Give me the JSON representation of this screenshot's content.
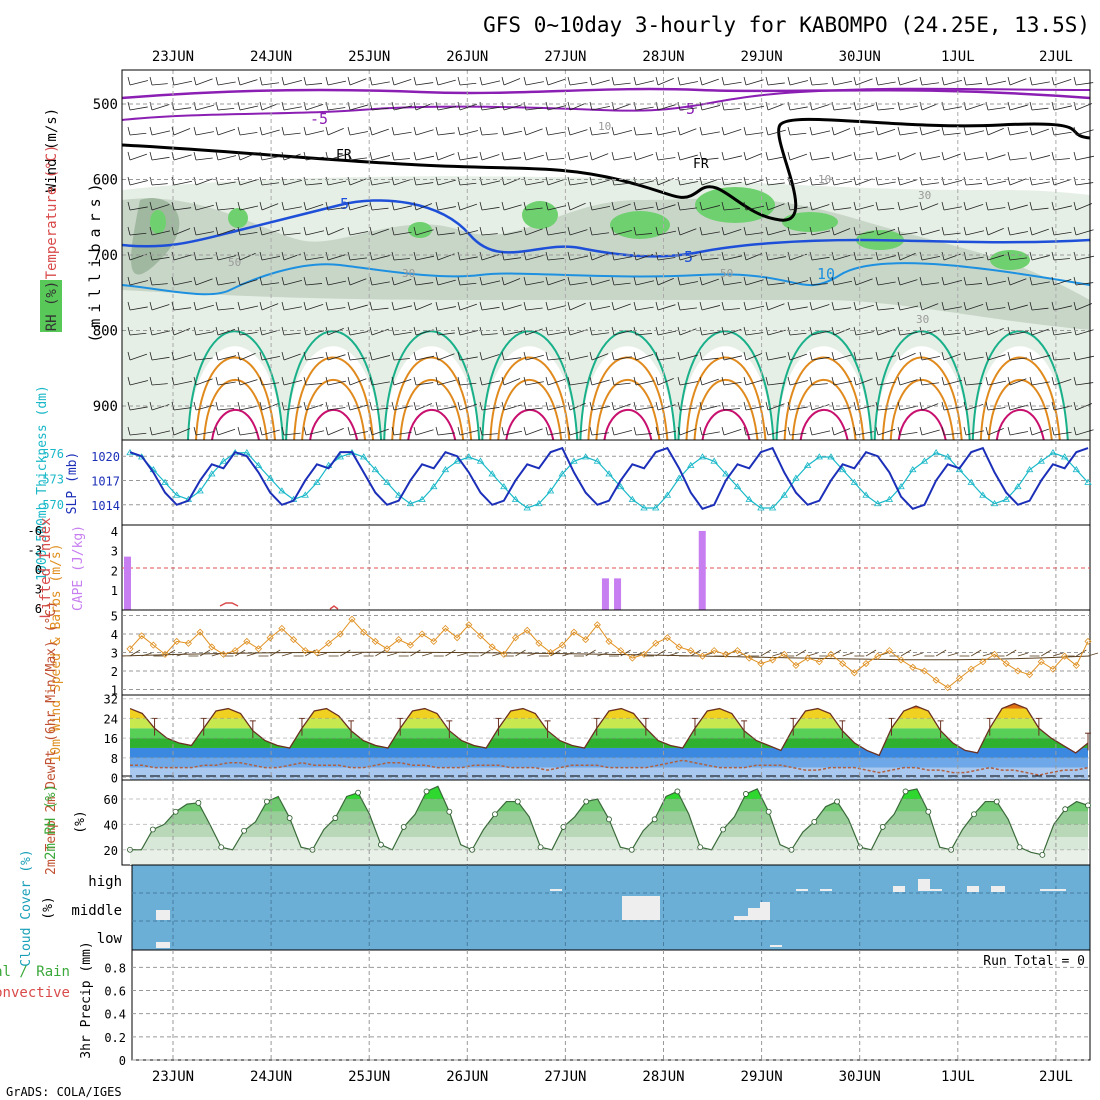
{
  "title": "GFS 0~10day 3-hourly for KABOMPO (24.25E, 13.5S)",
  "footer": "GrADS: COLA/IGES",
  "date_labels": [
    "23JUN",
    "24JUN",
    "25JUN",
    "26JUN",
    "27JUN",
    "28JUN",
    "29JUN",
    "30JUN",
    "1JUL",
    "2JUL"
  ],
  "colors": {
    "purple": "#8b1fb3",
    "blue": "#1e4fd8",
    "lightblue": "#1e90e0",
    "teal": "#19b08a",
    "orange": "#e08a1e",
    "magenta": "#c8106e",
    "slp": "#1c2fb8",
    "thick": "#19b8c8",
    "cape": "#c77ef0",
    "wind": "#e09020",
    "cloud": "#6baed6"
  },
  "chart_data": [
    {
      "type": "heatmap",
      "panel": "cross_section",
      "ylabel_parts": [
        "RH (%)",
        "Temperature (°C)",
        "Wind (m/s)"
      ],
      "yaxis_label": "(millibars)",
      "y_ticks": [
        500,
        600,
        700,
        800,
        900
      ],
      "contour_labels": [
        "-5",
        "-5",
        "5",
        "5",
        "10",
        "FR",
        "FR",
        "10",
        "10",
        "30",
        "30",
        "30",
        "50",
        "50"
      ]
    },
    {
      "type": "line",
      "panel": "slp_thickness",
      "ylabel_left": "1000-500mb Thickness (dm)",
      "ylabel_right": "SLP (mb)",
      "left_ticks": [
        576,
        573,
        570
      ],
      "right_ticks": [
        1020,
        1017,
        1014
      ],
      "series": [
        {
          "name": "SLP (mb)",
          "values": [
            1020.5,
            1020,
            1018,
            1015.5,
            1014,
            1014.5,
            1017,
            1019,
            1018.5,
            1020.5,
            1020,
            1018,
            1015.5,
            1014,
            1014.5,
            1017,
            1019,
            1018.5,
            1020.5,
            1020.5,
            1018,
            1015.5,
            1014,
            1014.5,
            1017,
            1019,
            1018.5,
            1020.5,
            1020,
            1018,
            1015.5,
            1014,
            1014.5,
            1017,
            1019,
            1018.5,
            1020.5,
            1021,
            1018,
            1015.5,
            1014,
            1014.5,
            1017,
            1019,
            1018.5,
            1020.5,
            1021,
            1018.5,
            1015.5,
            1013.5,
            1014,
            1017,
            1019,
            1018.5,
            1020.5,
            1021,
            1018,
            1015.5,
            1014,
            1014.5,
            1017,
            1019,
            1018.5,
            1020.5,
            1020,
            1018,
            1015,
            1013.5,
            1014,
            1017,
            1019,
            1018.5,
            1020.5,
            1021,
            1018,
            1015.5,
            1014,
            1014.5,
            1017,
            1019,
            1018.5,
            1020.5,
            1021
          ]
        },
        {
          "name": "Thickness (dm)",
          "values": [
            576,
            575.5,
            574,
            572.5,
            571,
            570.5,
            571.5,
            573.5,
            575,
            576,
            576,
            574.5,
            573,
            571.5,
            570.5,
            571,
            572.5,
            574.5,
            575.5,
            576,
            575.5,
            574,
            572.5,
            571,
            570,
            570.5,
            572,
            574,
            575,
            575.5,
            575,
            573.5,
            572,
            570.5,
            569.5,
            570,
            571.5,
            573.5,
            575,
            575.5,
            575,
            573.5,
            572,
            570.5,
            569.5,
            569.5,
            571,
            573,
            574.5,
            575.5,
            575,
            573.5,
            572,
            570.5,
            569.5,
            569.5,
            571,
            573,
            574.5,
            575.5,
            575.5,
            574,
            572.5,
            571,
            570,
            570.5,
            572,
            574,
            575,
            576,
            575.5,
            574,
            572.5,
            571,
            570,
            570.5,
            572,
            574,
            575,
            576,
            575.5,
            574,
            572.5
          ]
        }
      ]
    },
    {
      "type": "bar",
      "panel": "cape_li",
      "ylabel_left": "Lifted Index",
      "ylabel_right": "CAPE (J/kg)",
      "li_ticks": [
        "-6",
        "-3",
        "0",
        "3",
        "6"
      ],
      "cape_ticks": [
        4,
        3,
        2,
        1
      ],
      "cape_bars": [
        {
          "x": 0,
          "value": 2.7
        },
        {
          "x": 39.5,
          "value": 1.6
        },
        {
          "x": 40.5,
          "value": 1.6
        },
        {
          "x": 47.5,
          "value": 4
        }
      ]
    },
    {
      "type": "line",
      "panel": "wind10m",
      "ylabel": "10m Wind Speed & Barbs (m/s)",
      "y_ticks": [
        5,
        4,
        3,
        2,
        1
      ],
      "values": [
        3.2,
        3.9,
        3.4,
        2.9,
        3.6,
        3.5,
        4.1,
        3.3,
        2.9,
        3.1,
        3.6,
        3.2,
        3.8,
        4.3,
        3.7,
        3.1,
        3.0,
        3.5,
        4.0,
        4.8,
        4.1,
        3.6,
        3.2,
        3.7,
        3.4,
        4.0,
        3.6,
        4.3,
        3.8,
        4.5,
        3.9,
        3.3,
        2.9,
        3.8,
        4.2,
        3.5,
        3.0,
        3.4,
        4.1,
        3.7,
        4.5,
        3.6,
        3.1,
        2.7,
        2.9,
        3.5,
        3.8,
        3.3,
        3.1,
        2.8,
        3.1,
        2.9,
        3.1,
        2.7,
        2.4,
        2.6,
        2.9,
        2.3,
        2.7,
        2.5,
        2.9,
        2.4,
        1.9,
        2.4,
        2.8,
        3.1,
        2.6,
        2.2,
        2.0,
        1.5,
        1.1,
        1.6,
        2.1,
        2.5,
        2.9,
        2.4,
        2.0,
        1.8,
        2.5,
        2.1,
        2.8,
        2.3,
        3.6
      ]
    },
    {
      "type": "area",
      "panel": "temperature",
      "ylabel": "2m Temp 2m DewPt (6hr Min/Max) (°C)",
      "y_ticks": [
        32,
        24,
        16,
        8,
        0
      ],
      "temp_values": [
        28,
        26,
        20,
        16,
        14,
        13,
        20,
        27,
        28,
        26,
        19,
        15,
        13,
        12,
        20,
        27,
        28,
        25,
        19,
        15,
        13,
        12,
        20,
        27,
        28,
        26,
        19,
        15,
        13,
        12,
        20,
        27,
        28,
        26,
        19,
        15,
        13,
        12,
        20,
        27,
        28,
        26,
        20,
        15,
        13,
        12,
        20,
        27,
        28,
        26,
        19,
        15,
        13,
        11,
        20,
        27,
        28,
        26,
        19,
        14,
        11,
        9,
        20,
        27,
        29,
        27,
        19,
        14,
        11,
        10,
        20,
        28,
        30,
        28,
        20,
        16,
        13,
        10,
        14
      ],
      "dew_values": [
        5,
        5,
        4,
        4,
        4,
        4,
        5,
        5,
        6,
        6,
        5,
        4,
        4,
        5,
        6,
        5,
        5,
        5,
        4,
        4,
        5,
        6,
        6,
        5,
        5,
        4,
        4,
        4,
        5,
        5,
        5,
        4,
        4,
        4,
        3,
        4,
        5,
        5,
        5,
        4,
        4,
        4,
        4,
        5,
        6,
        7,
        6,
        5,
        4,
        4,
        4,
        5,
        5,
        5,
        4,
        3,
        3,
        4,
        4,
        4,
        3,
        2,
        3,
        4,
        4,
        3,
        3,
        2,
        2,
        3,
        4,
        3,
        3,
        2,
        1,
        2,
        3,
        3,
        4
      ]
    },
    {
      "type": "area",
      "panel": "rh",
      "ylabel": "2m RH (%)",
      "y_ticks": [
        60,
        40,
        20
      ],
      "values": [
        20,
        20,
        36,
        40,
        50,
        56,
        57,
        40,
        22,
        20,
        35,
        42,
        58,
        62,
        45,
        22,
        20,
        36,
        45,
        62,
        65,
        48,
        24,
        20,
        38,
        48,
        66,
        70,
        50,
        24,
        20,
        36,
        48,
        58,
        58,
        46,
        22,
        20,
        38,
        46,
        58,
        60,
        44,
        22,
        20,
        35,
        44,
        62,
        66,
        48,
        22,
        20,
        36,
        46,
        64,
        68,
        50,
        24,
        20,
        34,
        42,
        54,
        58,
        44,
        22,
        20,
        38,
        48,
        66,
        68,
        50,
        22,
        20,
        36,
        48,
        58,
        58,
        44,
        22,
        18,
        16,
        40,
        52,
        58,
        55
      ]
    },
    {
      "type": "bar",
      "panel": "cloud",
      "ylabel": "Cloud Cover (%)",
      "layer_labels": [
        "high",
        "middle",
        "low"
      ]
    },
    {
      "type": "bar",
      "panel": "precip",
      "ylabel_left": [
        "tal / Rain",
        "Convective"
      ],
      "ylabel": "3hr Precip (mm)",
      "run_total": "Run Total = 0",
      "y_ticks": [
        "0.8",
        "0.6",
        "0.4",
        "0.2",
        "0"
      ],
      "values": []
    }
  ]
}
